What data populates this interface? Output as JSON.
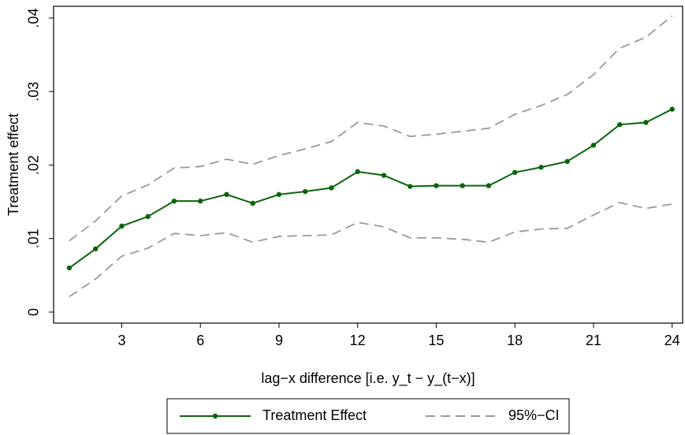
{
  "chart_data": {
    "type": "line",
    "y_label": "Treatment effect",
    "x_label": "lag−x difference [i.e. y_t − y_(t−x)]",
    "x": [
      1,
      2,
      3,
      4,
      5,
      6,
      7,
      8,
      9,
      10,
      11,
      12,
      13,
      14,
      15,
      16,
      17,
      18,
      19,
      20,
      21,
      22,
      23,
      24
    ],
    "series": [
      {
        "name": "Treatment Effect",
        "color": "#0a640a",
        "markers": true,
        "values": [
          0.006,
          0.0086,
          0.0117,
          0.013,
          0.0151,
          0.0151,
          0.016,
          0.0148,
          0.016,
          0.0164,
          0.0169,
          0.0191,
          0.0186,
          0.0171,
          0.0172,
          0.0172,
          0.0172,
          0.019,
          0.0197,
          0.0205,
          0.0227,
          0.0255,
          0.0258,
          0.0276
        ]
      },
      {
        "name": "95%−CI",
        "color": "#999999",
        "dashed": true,
        "upper": [
          0.0097,
          0.0124,
          0.0158,
          0.0173,
          0.0196,
          0.0198,
          0.0208,
          0.0201,
          0.0213,
          0.0222,
          0.0232,
          0.0258,
          0.0253,
          0.0239,
          0.0242,
          0.0246,
          0.025,
          0.0269,
          0.0281,
          0.0296,
          0.0323,
          0.0359,
          0.0374,
          0.0403
        ],
        "lower": [
          0.0021,
          0.0045,
          0.0076,
          0.0087,
          0.0107,
          0.0104,
          0.0108,
          0.0095,
          0.0103,
          0.0104,
          0.0105,
          0.0122,
          0.0116,
          0.0101,
          0.0101,
          0.0099,
          0.0095,
          0.0109,
          0.0113,
          0.0114,
          0.0132,
          0.0149,
          0.0141,
          0.0147
        ]
      }
    ],
    "xlim": [
      0.4,
      24.4
    ],
    "ylim": [
      -0.0015,
      0.0416
    ],
    "xticks": [
      3,
      6,
      9,
      12,
      15,
      18,
      21,
      24
    ],
    "yticks": [
      0,
      {
        "value": 0.01,
        "label": ".01"
      },
      {
        "value": 0.02,
        "label": ".02"
      },
      {
        "value": 0.03,
        "label": ".03"
      },
      {
        "value": 0.04,
        "label": ".04"
      }
    ],
    "legend": "bottom"
  }
}
